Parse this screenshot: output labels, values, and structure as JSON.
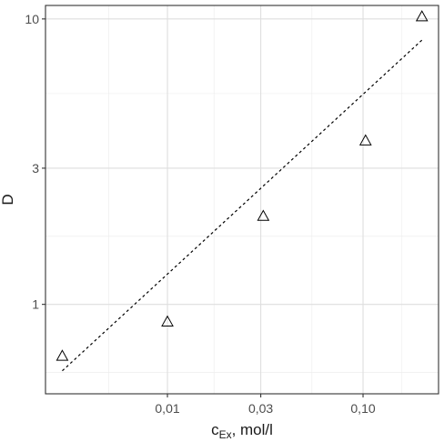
{
  "chart_data": {
    "type": "scatter",
    "xlabel_main": "c",
    "xlabel_sub": "Ex",
    "xlabel_rest": ", mol/l",
    "ylabel": "D",
    "x_scale": "log10",
    "y_scale": "log10",
    "xlim": [
      0.00238,
      0.2432
    ],
    "ylim": [
      0.486,
      11.15
    ],
    "x_ticks": [
      {
        "value": 0.01,
        "label": "0,01"
      },
      {
        "value": 0.03,
        "label": "0,03"
      },
      {
        "value": 0.1,
        "label": "0,10"
      }
    ],
    "y_ticks": [
      {
        "value": 1,
        "label": "1"
      },
      {
        "value": 3,
        "label": "3"
      },
      {
        "value": 10,
        "label": "10"
      }
    ],
    "x_minor_gridlines": [
      0.005,
      0.0173,
      0.0548,
      0.1581
    ],
    "y_minor_gridlines": [
      0.577,
      1.732,
      5.477
    ],
    "points": [
      {
        "x": 0.0029,
        "y": 0.66
      },
      {
        "x": 0.01,
        "y": 0.87
      },
      {
        "x": 0.0309,
        "y": 2.04
      },
      {
        "x": 0.103,
        "y": 3.75
      },
      {
        "x": 0.2,
        "y": 10.2
      }
    ],
    "fit_line": {
      "x": [
        0.0029,
        0.2
      ],
      "y": [
        0.585,
        8.43
      ]
    },
    "grid": true,
    "marker": "open-triangle",
    "fit_style": "dashed"
  }
}
